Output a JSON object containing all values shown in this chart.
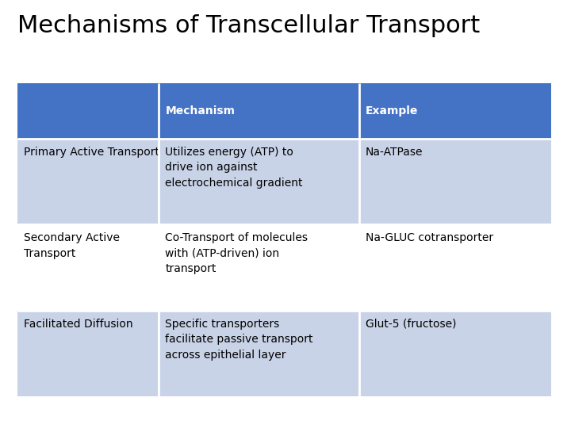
{
  "title": "Mechanisms of Transcellular Transport",
  "title_fontsize": 22,
  "background_color": "#ffffff",
  "header_bg_color": "#4472C4",
  "header_text_color": "#ffffff",
  "row_bg_color_odd": "#C9D3E8",
  "row_bg_color_even": "#ffffff",
  "headers": [
    "",
    "Mechanism",
    "Example"
  ],
  "rows": [
    [
      "Primary Active Transport",
      "Utilizes energy (ATP) to\ndrive ion against\nelectrochemical gradient",
      "Na-ATPase"
    ],
    [
      "Secondary Active\nTransport",
      "Co-Transport of molecules\nwith (ATP-driven) ion\ntransport",
      "Na-GLUC cotransporter"
    ],
    [
      "Facilitated Diffusion",
      "Specific transporters\nfacilitate passive transport\nacross epithelial layer",
      "Glut-5 (fructose)"
    ]
  ],
  "cell_text_fontsize": 10,
  "header_fontsize": 10,
  "divider_color": "#ffffff"
}
